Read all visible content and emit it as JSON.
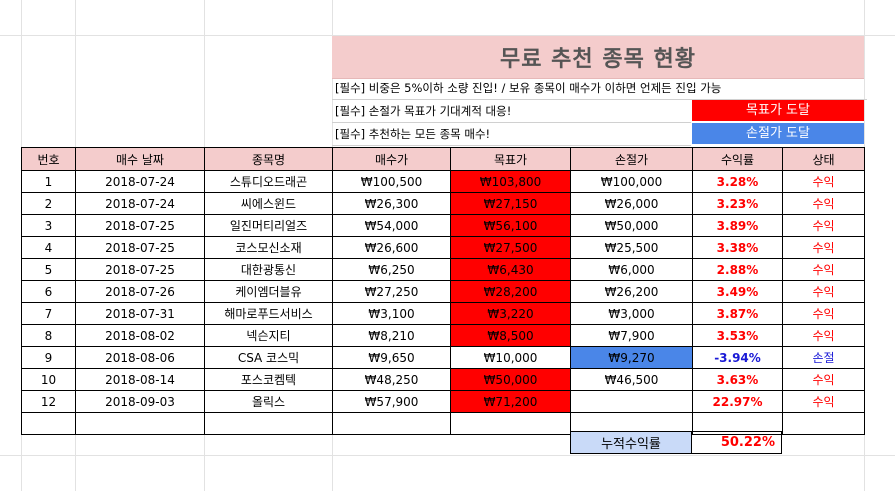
{
  "title": "무료 추천 종목 현황",
  "notes": [
    "[필수] 비중은 5%이하 소량 진입! / 보유 종목이 매수가 이하면 언제든 진입 가능",
    "[필수] 손절가 목표가 기대계적 대응!",
    "[필수] 추천하는 모든 종목 매수!"
  ],
  "legend": {
    "target_reached": "목표가 도달",
    "stop_reached": "손절가 도달",
    "target_color": "#ff0000",
    "stop_color": "#4a86e8"
  },
  "columns": [
    "번호",
    "매수 날짜",
    "종목명",
    "매수가",
    "목표가",
    "손절가",
    "수익률",
    "상태"
  ],
  "rows": [
    {
      "no": "1",
      "date": "2018-07-24",
      "name": "스튜디오드래곤",
      "buy": "₩100,500",
      "target": "₩103,800",
      "stop": "₩100,000",
      "yield": "3.28%",
      "status": "수익",
      "hit": "target"
    },
    {
      "no": "2",
      "date": "2018-07-24",
      "name": "씨에스윈드",
      "buy": "₩26,300",
      "target": "₩27,150",
      "stop": "₩26,000",
      "yield": "3.23%",
      "status": "수익",
      "hit": "target"
    },
    {
      "no": "3",
      "date": "2018-07-25",
      "name": "일진머티리얼즈",
      "buy": "₩54,000",
      "target": "₩56,100",
      "stop": "₩50,000",
      "yield": "3.89%",
      "status": "수익",
      "hit": "target"
    },
    {
      "no": "4",
      "date": "2018-07-25",
      "name": "코스모신소재",
      "buy": "₩26,600",
      "target": "₩27,500",
      "stop": "₩25,500",
      "yield": "3.38%",
      "status": "수익",
      "hit": "target"
    },
    {
      "no": "5",
      "date": "2018-07-25",
      "name": "대한광통신",
      "buy": "₩6,250",
      "target": "₩6,430",
      "stop": "₩6,000",
      "yield": "2.88%",
      "status": "수익",
      "hit": "target"
    },
    {
      "no": "6",
      "date": "2018-07-26",
      "name": "케이엠더블유",
      "buy": "₩27,250",
      "target": "₩28,200",
      "stop": "₩26,200",
      "yield": "3.49%",
      "status": "수익",
      "hit": "target"
    },
    {
      "no": "7",
      "date": "2018-07-31",
      "name": "해마로푸드서비스",
      "buy": "₩3,100",
      "target": "₩3,220",
      "stop": "₩3,000",
      "yield": "3.87%",
      "status": "수익",
      "hit": "target"
    },
    {
      "no": "8",
      "date": "2018-08-02",
      "name": "넥슨지티",
      "buy": "₩8,210",
      "target": "₩8,500",
      "stop": "₩7,900",
      "yield": "3.53%",
      "status": "수익",
      "hit": "target"
    },
    {
      "no": "9",
      "date": "2018-08-06",
      "name": "CSA 코스믹",
      "buy": "₩9,650",
      "target": "₩10,000",
      "stop": "₩9,270",
      "yield": "-3.94%",
      "status": "손절",
      "hit": "stop"
    },
    {
      "no": "10",
      "date": "2018-08-14",
      "name": "포스코켐텍",
      "buy": "₩48,250",
      "target": "₩50,000",
      "stop": "₩46,500",
      "yield": "3.63%",
      "status": "수익",
      "hit": "target"
    },
    {
      "no": "12",
      "date": "2018-09-03",
      "name": "올릭스",
      "buy": "₩57,900",
      "target": "₩71,200",
      "stop": "",
      "yield": "22.97%",
      "status": "수익",
      "hit": "target"
    }
  ],
  "cumulative": {
    "label": "누적수익률",
    "value": "50.22%"
  }
}
